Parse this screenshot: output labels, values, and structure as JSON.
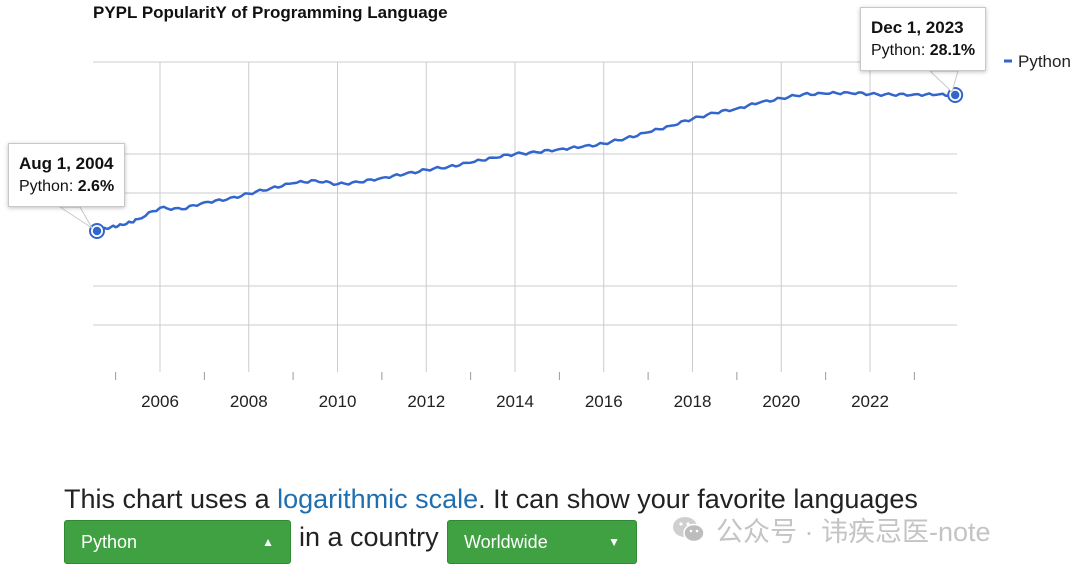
{
  "chart_data": {
    "type": "line",
    "title": "PYPL PopularitY of Programming Language",
    "xlabel": "",
    "ylabel": "",
    "y_scale": "log",
    "grid": true,
    "legend": "right",
    "x_ticks": [
      "2006",
      "2008",
      "2010",
      "2012",
      "2014",
      "2016",
      "2018",
      "2020",
      "2022"
    ],
    "series": [
      {
        "name": "Python",
        "color": "#3366cc",
        "x": [
          2004.58,
          2004.9,
          2005.2,
          2005.5,
          2006.0,
          2006.5,
          2007.0,
          2007.5,
          2008.0,
          2008.5,
          2009.0,
          2009.5,
          2010.0,
          2010.5,
          2011.0,
          2011.5,
          2012.0,
          2012.5,
          2013.0,
          2013.5,
          2014.0,
          2014.5,
          2015.0,
          2015.5,
          2016.0,
          2016.5,
          2017.0,
          2017.5,
          2018.0,
          2018.5,
          2019.0,
          2019.5,
          2020.0,
          2020.5,
          2021.0,
          2021.5,
          2022.0,
          2022.5,
          2023.0,
          2023.5,
          2023.92
        ],
        "values": [
          2.6,
          2.8,
          2.9,
          3.2,
          3.9,
          3.8,
          4.3,
          4.5,
          5.0,
          5.5,
          6.0,
          6.3,
          5.9,
          6.1,
          6.6,
          7.0,
          7.6,
          8.0,
          8.6,
          9.4,
          10.0,
          10.3,
          10.9,
          11.3,
          12.0,
          13.2,
          14.6,
          16.4,
          18.5,
          20.5,
          22.2,
          24.5,
          26.5,
          28.5,
          28.7,
          29.4,
          28.5,
          28.2,
          28.4,
          28.2,
          28.1
        ]
      }
    ],
    "annotations": [
      {
        "date": "Aug 1, 2004",
        "series_prefix": "Python: ",
        "value": "2.6%"
      },
      {
        "date": "Dec 1, 2023",
        "series_prefix": "Python: ",
        "value": "28.1%"
      }
    ]
  },
  "description": {
    "prefix": "This chart uses a ",
    "link": "logarithmic scale",
    "suffix": ". It can show your favorite languages"
  },
  "controls": {
    "language_select": "Python",
    "connector_text": "in a country",
    "country_select": "Worldwide"
  },
  "watermark": "公众号 · 讳疾忌医-note"
}
